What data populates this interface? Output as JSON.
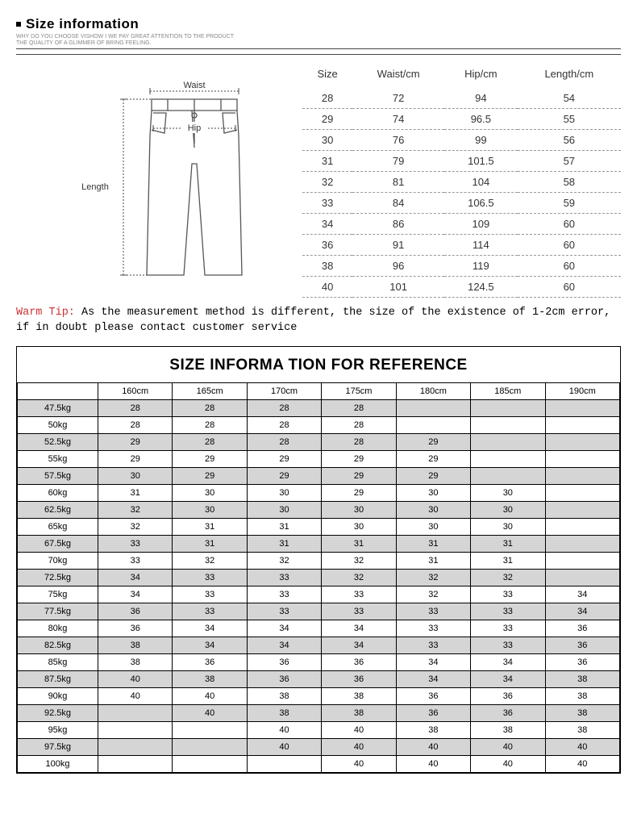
{
  "header": {
    "title": "Size information",
    "subtitle1": "WHY DO YOU CHOOSE VISHOW I WE PAY GREAT ATTENTION TO THE PRODUCT",
    "subtitle2": "THE QUALITY OF A GLIMMER OF BRING FEELING."
  },
  "diagram": {
    "waist": "Waist",
    "hip": "Hip",
    "length": "Length",
    "line_color": "#555555",
    "dim_color": "#444444"
  },
  "size_table": {
    "columns": [
      "Size",
      "Waist/cm",
      "Hip/cm",
      "Length/cm"
    ],
    "rows": [
      [
        "28",
        "72",
        "94",
        "54"
      ],
      [
        "29",
        "74",
        "96.5",
        "55"
      ],
      [
        "30",
        "76",
        "99",
        "56"
      ],
      [
        "31",
        "79",
        "101.5",
        "57"
      ],
      [
        "32",
        "81",
        "104",
        "58"
      ],
      [
        "33",
        "84",
        "106.5",
        "59"
      ],
      [
        "34",
        "86",
        "109",
        "60"
      ],
      [
        "36",
        "91",
        "114",
        "60"
      ],
      [
        "38",
        "96",
        "119",
        "60"
      ],
      [
        "40",
        "101",
        "124.5",
        "60"
      ]
    ]
  },
  "warm_tip": {
    "label": "Warm Tip:",
    "text": " As the measurement method is different, the size of the existence of 1-2cm error, if in doubt please contact customer service"
  },
  "ref": {
    "title": "SIZE INFORMA TION FOR REFERENCE",
    "heights": [
      "160cm",
      "165cm",
      "170cm",
      "175cm",
      "180cm",
      "185cm",
      "190cm"
    ],
    "weights": [
      "47.5kg",
      "50kg",
      "52.5kg",
      "55kg",
      "57.5kg",
      "60kg",
      "62.5kg",
      "65kg",
      "67.5kg",
      "70kg",
      "72.5kg",
      "75kg",
      "77.5kg",
      "80kg",
      "82.5kg",
      "85kg",
      "87.5kg",
      "90kg",
      "92.5kg",
      "95kg",
      "97.5kg",
      "100kg"
    ],
    "data": [
      [
        "28",
        "28",
        "28",
        "28",
        "",
        "",
        ""
      ],
      [
        "28",
        "28",
        "28",
        "28",
        "",
        "",
        ""
      ],
      [
        "29",
        "28",
        "28",
        "28",
        "29",
        "",
        ""
      ],
      [
        "29",
        "29",
        "29",
        "29",
        "29",
        "",
        ""
      ],
      [
        "30",
        "29",
        "29",
        "29",
        "29",
        "",
        ""
      ],
      [
        "31",
        "30",
        "30",
        "29",
        "30",
        "30",
        ""
      ],
      [
        "32",
        "30",
        "30",
        "30",
        "30",
        "30",
        ""
      ],
      [
        "32",
        "31",
        "31",
        "30",
        "30",
        "30",
        ""
      ],
      [
        "33",
        "31",
        "31",
        "31",
        "31",
        "31",
        ""
      ],
      [
        "33",
        "32",
        "32",
        "32",
        "31",
        "31",
        ""
      ],
      [
        "34",
        "33",
        "33",
        "32",
        "32",
        "32",
        ""
      ],
      [
        "34",
        "33",
        "33",
        "33",
        "32",
        "33",
        "34"
      ],
      [
        "36",
        "33",
        "33",
        "33",
        "33",
        "33",
        "34"
      ],
      [
        "36",
        "34",
        "34",
        "34",
        "33",
        "33",
        "36"
      ],
      [
        "38",
        "34",
        "34",
        "34",
        "33",
        "33",
        "36"
      ],
      [
        "38",
        "36",
        "36",
        "36",
        "34",
        "34",
        "36"
      ],
      [
        "40",
        "38",
        "36",
        "36",
        "34",
        "34",
        "38"
      ],
      [
        "40",
        "40",
        "38",
        "38",
        "36",
        "36",
        "38"
      ],
      [
        "",
        "40",
        "38",
        "38",
        "36",
        "36",
        "38"
      ],
      [
        "",
        "",
        "40",
        "40",
        "38",
        "38",
        "38"
      ],
      [
        "",
        "",
        "40",
        "40",
        "40",
        "40",
        "40"
      ],
      [
        "",
        "",
        "",
        "40",
        "40",
        "40",
        "40"
      ]
    ],
    "shaded_bg": "#d5d5d5"
  }
}
